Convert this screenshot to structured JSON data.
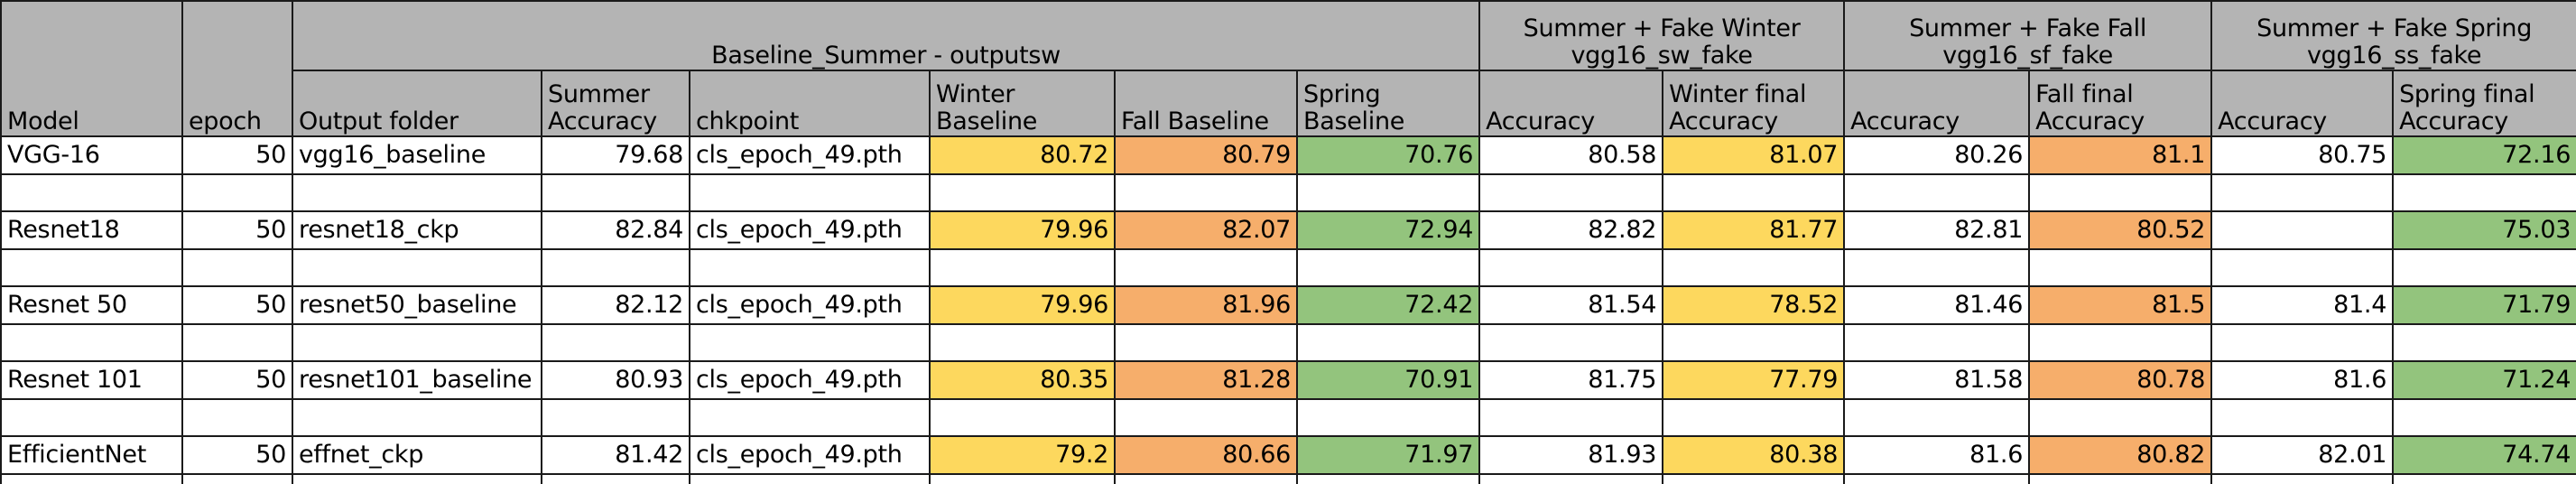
{
  "sheet": {
    "group_headers": [
      "Baseline_Summer - outputsw",
      "Summer + Fake Winter\nvgg16_sw_fake",
      "Summer + Fake Fall\nvgg16_sf_fake",
      "Summer + Fake Spring\nvgg16_ss_fake"
    ],
    "columns": [
      "Model",
      "epoch",
      "Output folder",
      "Summer\nAccuracy",
      "chkpoint",
      "Winter\nBaseline",
      "Fall Baseline",
      "Spring\nBaseline",
      "Accuracy",
      "Winter final\nAccuracy",
      "Accuracy",
      "Fall final\nAccuracy",
      "Accuracy",
      "Spring final\nAccuracy"
    ],
    "rows": [
      [
        "VGG-16",
        "50",
        "vgg16_baseline",
        "79.68",
        "cls_epoch_49.pth",
        "80.72",
        "80.79",
        "70.76",
        "80.58",
        "81.07",
        "80.26",
        "81.1",
        "80.75",
        "72.16"
      ],
      [
        "Resnet18",
        "50",
        "resnet18_ckp",
        "82.84",
        "cls_epoch_49.pth",
        "79.96",
        "82.07",
        "72.94",
        "82.82",
        "81.77",
        "82.81",
        "80.52",
        "",
        "75.03"
      ],
      [
        "Resnet 50",
        "50",
        "resnet50_baseline",
        "82.12",
        "cls_epoch_49.pth",
        "79.96",
        "81.96",
        "72.42",
        "81.54",
        "78.52",
        "81.46",
        "81.5",
        "81.4",
        "71.79"
      ],
      [
        "Resnet 101",
        "50",
        "resnet101_baseline",
        "80.93",
        "cls_epoch_49.pth",
        "80.35",
        "81.28",
        "70.91",
        "81.75",
        "77.79",
        "81.58",
        "80.78",
        "81.6",
        "71.24"
      ],
      [
        "EfficientNet",
        "50",
        "effnet_ckp",
        "81.42",
        "cls_epoch_49.pth",
        "79.2",
        "80.66",
        "71.97",
        "81.93",
        "80.38",
        "81.6",
        "80.82",
        "82.01",
        "74.74"
      ]
    ],
    "highlight_colors": {
      "yellow": "#fdd85e",
      "orange": "#f6ae6b",
      "green": "#93c47d",
      "header": "#b4b4b4"
    }
  }
}
